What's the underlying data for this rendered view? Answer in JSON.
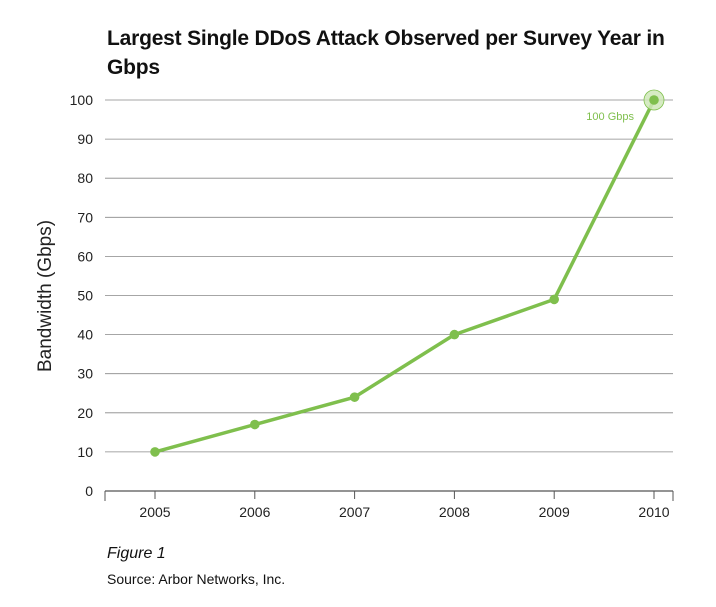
{
  "chart_data": {
    "type": "line",
    "title": "Largest Single DDoS Attack Observed per Survey Year in Gbps",
    "xlabel": "",
    "ylabel": "Bandwidth (Gbps)",
    "categories": [
      "2005",
      "2006",
      "2007",
      "2008",
      "2009",
      "2010"
    ],
    "series": [
      {
        "values": [
          10,
          17,
          24,
          40,
          49,
          100
        ]
      }
    ],
    "ylim": [
      0,
      100
    ],
    "yticks": [
      0,
      10,
      20,
      30,
      40,
      50,
      60,
      70,
      80,
      90,
      100
    ],
    "grid": true,
    "annotations": [
      {
        "category": "2010",
        "value": 100,
        "text": "100 Gbps"
      }
    ],
    "colors": {
      "line": "#7fbf4d",
      "highlight": "#cfe7b8",
      "grid": "#888888"
    }
  },
  "figure_caption": "Figure 1",
  "source": "Source: Arbor Networks, Inc."
}
